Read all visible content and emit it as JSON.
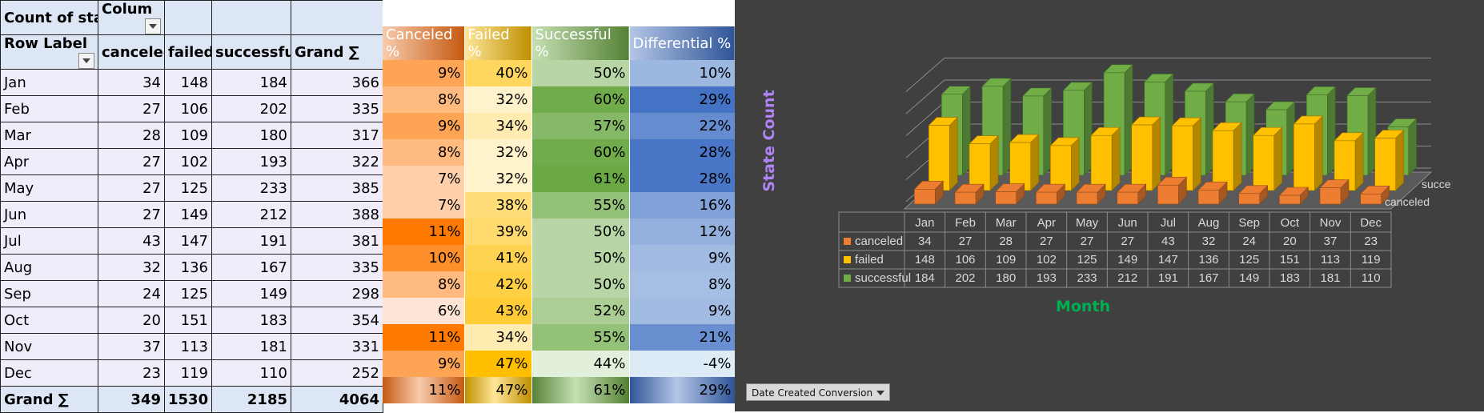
{
  "pivot": {
    "header1": {
      "count_label": "Count of sta",
      "column_label": "Colum"
    },
    "header2": {
      "row_labels": "Row Label",
      "canceled": "canceled",
      "failed": "failed",
      "successful": "successful",
      "grand": "Grand ∑"
    },
    "rows": [
      {
        "month": "Jan",
        "canceled": "34",
        "failed": "148",
        "successful": "184",
        "grand": "366"
      },
      {
        "month": "Feb",
        "canceled": "27",
        "failed": "106",
        "successful": "202",
        "grand": "335"
      },
      {
        "month": "Mar",
        "canceled": "28",
        "failed": "109",
        "successful": "180",
        "grand": "317"
      },
      {
        "month": "Apr",
        "canceled": "27",
        "failed": "102",
        "successful": "193",
        "grand": "322"
      },
      {
        "month": "May",
        "canceled": "27",
        "failed": "125",
        "successful": "233",
        "grand": "385"
      },
      {
        "month": "Jun",
        "canceled": "27",
        "failed": "149",
        "successful": "212",
        "grand": "388"
      },
      {
        "month": "Jul",
        "canceled": "43",
        "failed": "147",
        "successful": "191",
        "grand": "381"
      },
      {
        "month": "Aug",
        "canceled": "32",
        "failed": "136",
        "successful": "167",
        "grand": "335"
      },
      {
        "month": "Sep",
        "canceled": "24",
        "failed": "125",
        "successful": "149",
        "grand": "298"
      },
      {
        "month": "Oct",
        "canceled": "20",
        "failed": "151",
        "successful": "183",
        "grand": "354"
      },
      {
        "month": "Nov",
        "canceled": "37",
        "failed": "113",
        "successful": "181",
        "grand": "331"
      },
      {
        "month": "Dec",
        "canceled": "23",
        "failed": "119",
        "successful": "110",
        "grand": "252"
      }
    ],
    "total": {
      "label": "Grand ∑",
      "canceled": "349",
      "failed": "1530",
      "successful": "2185",
      "grand": "4064"
    }
  },
  "percent": {
    "headers": {
      "canceled": "Canceled %",
      "failed": "Failed %",
      "successful": "Successful %",
      "differential": "Differential %"
    },
    "rows": [
      {
        "canceled": "9%",
        "failed": "40%",
        "successful": "50%",
        "differential": "10%"
      },
      {
        "canceled": "8%",
        "failed": "32%",
        "successful": "60%",
        "differential": "29%"
      },
      {
        "canceled": "9%",
        "failed": "34%",
        "successful": "57%",
        "differential": "22%"
      },
      {
        "canceled": "8%",
        "failed": "32%",
        "successful": "60%",
        "differential": "28%"
      },
      {
        "canceled": "7%",
        "failed": "32%",
        "successful": "61%",
        "differential": "28%"
      },
      {
        "canceled": "7%",
        "failed": "38%",
        "successful": "55%",
        "differential": "16%"
      },
      {
        "canceled": "11%",
        "failed": "39%",
        "successful": "50%",
        "differential": "12%"
      },
      {
        "canceled": "10%",
        "failed": "41%",
        "successful": "50%",
        "differential": "9%"
      },
      {
        "canceled": "8%",
        "failed": "42%",
        "successful": "50%",
        "differential": "8%"
      },
      {
        "canceled": "6%",
        "failed": "43%",
        "successful": "52%",
        "differential": "9%"
      },
      {
        "canceled": "11%",
        "failed": "34%",
        "successful": "55%",
        "differential": "21%"
      },
      {
        "canceled": "9%",
        "failed": "47%",
        "successful": "44%",
        "differential": "-4%"
      }
    ],
    "total": {
      "canceled": "11%",
      "failed": "47%",
      "successful": "61%",
      "differential": "29%"
    }
  },
  "chart_data": {
    "type": "bar",
    "subtype": "3d-column",
    "title": "",
    "xlabel": "Month",
    "ylabel": "State Count",
    "categories": [
      "Jan",
      "Feb",
      "Mar",
      "Apr",
      "May",
      "Jun",
      "Jul",
      "Aug",
      "Sep",
      "Oct",
      "Nov",
      "Dec"
    ],
    "series": [
      {
        "name": "canceled",
        "color": "#ed7d31",
        "values": [
          34,
          27,
          28,
          27,
          27,
          27,
          43,
          32,
          24,
          20,
          37,
          23
        ]
      },
      {
        "name": "failed",
        "color": "#ffc000",
        "values": [
          148,
          106,
          109,
          102,
          125,
          149,
          147,
          136,
          125,
          151,
          113,
          119
        ]
      },
      {
        "name": "successful",
        "color": "#70ad47",
        "values": [
          184,
          202,
          180,
          193,
          233,
          212,
          191,
          167,
          149,
          183,
          181,
          110
        ]
      }
    ],
    "depth_axis_labels": [
      "succe",
      "canceled"
    ],
    "ylim": [
      0,
      250
    ],
    "data_table": true
  },
  "filter": {
    "label": "Date Created Conversion"
  },
  "colors": {
    "canceled_header": "#c55a11",
    "failed_header": "#bf9000",
    "successful_header": "#548235",
    "differential_header": "#2f5597",
    "chart_bg": "#404040",
    "axis_label_y": "#b084f5",
    "axis_label_x": "#00b050"
  }
}
